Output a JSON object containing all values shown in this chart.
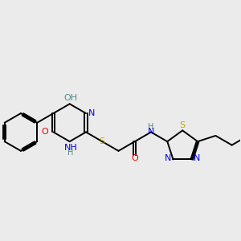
{
  "background_color": "#ebebeb",
  "atom_colors": {
    "C": "#000000",
    "N": "#0000ee",
    "O": "#ee0000",
    "S": "#bbaa00",
    "H": "#558888"
  },
  "lw": 1.4,
  "fs": 8.0
}
